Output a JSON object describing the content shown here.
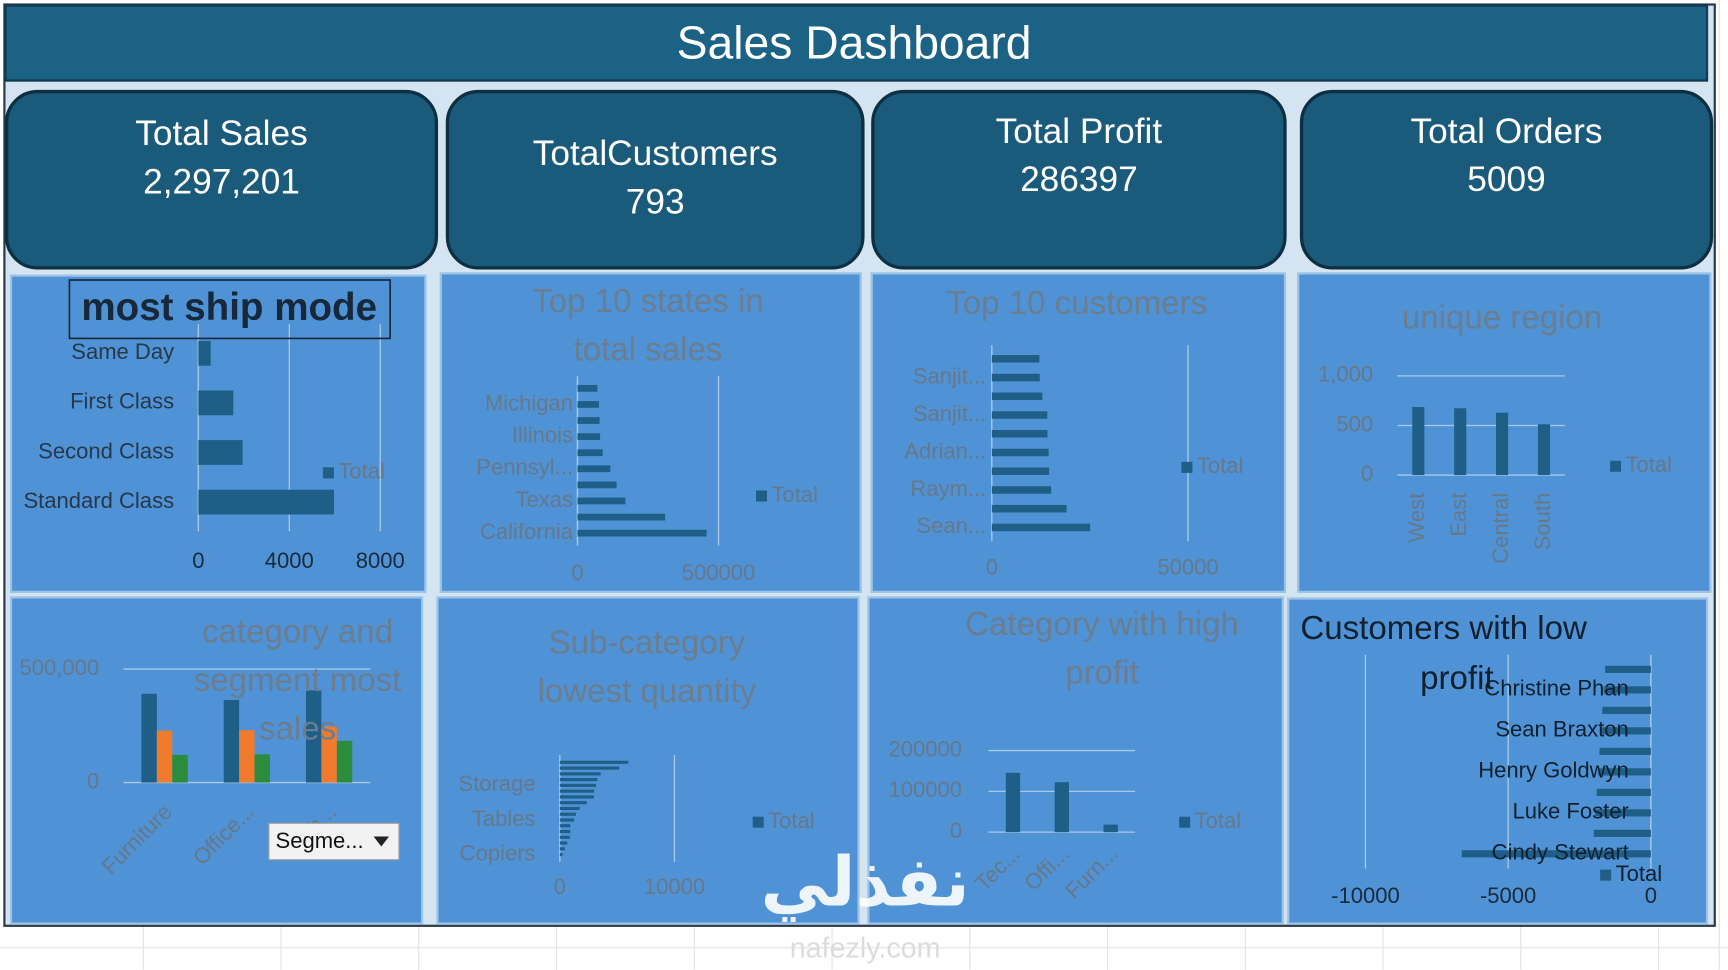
{
  "header": {
    "title": "Sales Dashboard"
  },
  "kpis": [
    {
      "label": "Total Sales",
      "value": "2,297,201"
    },
    {
      "label": "TotalCustomers",
      "value": "793"
    },
    {
      "label": "Total Profit",
      "value": "286397"
    },
    {
      "label": "Total Orders",
      "value": "5009"
    }
  ],
  "watermark": {
    "logo": "نفذلي",
    "site": "nafezly.com"
  },
  "chart_data": [
    {
      "type": "barh",
      "title": [
        "most ship mode"
      ],
      "categories": [
        "Same Day",
        "First Class",
        "Second Class",
        "Standard Class"
      ],
      "series": [
        {
          "name": "Total",
          "color": "#1f5f87",
          "values": [
            543,
            1538,
            1945,
            5968
          ]
        }
      ],
      "xlim": [
        0,
        8000
      ],
      "xticks": [
        0,
        4000,
        8000
      ],
      "grid": true
    },
    {
      "type": "barh",
      "title": [
        "Top 10 states in",
        "total sales"
      ],
      "categories": [
        null,
        "Michigan",
        null,
        "Illinois",
        null,
        "Pennsyl...",
        null,
        "Texas",
        null,
        "California"
      ],
      "series": [
        {
          "name": "Total",
          "color": "#1f5f87",
          "values": [
            70637,
            76270,
            78258,
            80166,
            89474,
            116512,
            138641,
            170188,
            310876,
            457688
          ]
        }
      ],
      "xlim": [
        0,
        500000
      ],
      "xticks": [
        0,
        500000
      ],
      "grid": true
    },
    {
      "type": "barh",
      "title": [
        "Top 10 customers"
      ],
      "categories": [
        null,
        "Sanjit...",
        null,
        "Sanjit...",
        null,
        "Adrian...",
        null,
        "Raym...",
        null,
        "Sean..."
      ],
      "series": [
        {
          "name": "Total",
          "color": "#1f5f87",
          "values": [
            12129,
            12209,
            12873,
            14142,
            14175,
            14474,
            14596,
            15117,
            19052,
            25043
          ]
        }
      ],
      "xlim": [
        0,
        50000
      ],
      "xticks": [
        0,
        50000
      ],
      "grid": true
    },
    {
      "type": "bar",
      "title": [
        "unique region"
      ],
      "categories": [
        "West",
        "East",
        "Central",
        "South"
      ],
      "series": [
        {
          "name": "Total",
          "color": "#1f5f87",
          "values": [
            686,
            674,
            629,
            512
          ]
        }
      ],
      "ylim": [
        0,
        1000
      ],
      "yticks": [
        0,
        500,
        {
          "value": 1000,
          "label": "1,000"
        }
      ],
      "grid": true
    },
    {
      "type": "bar",
      "title": [
        "category and",
        "segment most",
        "sales"
      ],
      "categories": [
        "Furniture",
        "Office...",
        "Tech..."
      ],
      "series": [
        {
          "color": "#1f5f87",
          "values": [
            391049,
            363952,
            406399
          ]
        },
        {
          "color": "#f07b2c",
          "values": [
            229019,
            230676,
            246450
          ]
        },
        {
          "color": "#2a8c3c",
          "values": [
            121930,
            124418,
            183470
          ]
        }
      ],
      "ylim": [
        0,
        500000
      ],
      "yticks": [
        0,
        {
          "value": 500000,
          "label": "500,000"
        }
      ],
      "grid": true,
      "slicer": "Segme..."
    },
    {
      "type": "barh",
      "title": [
        "Sub-category",
        "lowest quantity"
      ],
      "categories": [
        null,
        null,
        null,
        null,
        "Storage",
        null,
        null,
        null,
        null,
        null,
        "Tables",
        null,
        null,
        null,
        null,
        null,
        "Copiers"
      ],
      "series": [
        {
          "name": "Total",
          "color": "#1f5f87",
          "values": [
            5974,
            5178,
            3563,
            3289,
            3158,
            3000,
            2976,
            2356,
            1729,
            1400,
            1241,
            914,
            906,
            868,
            647,
            440,
            234
          ]
        }
      ],
      "xlim": [
        0,
        10000
      ],
      "xticks": [
        0,
        10000
      ],
      "grid": true
    },
    {
      "type": "bar",
      "title": [
        "Category with high",
        "profit"
      ],
      "categories": [
        "Tec...",
        "Offi...",
        "Furn..."
      ],
      "series": [
        {
          "name": "Total",
          "color": "#1f5f87",
          "values": [
            145455,
            122491,
            18451
          ]
        }
      ],
      "ylim": [
        0,
        200000
      ],
      "yticks": [
        0,
        100000,
        200000
      ],
      "grid": true
    },
    {
      "type": "barh",
      "title": [
        "Customers with low",
        "profit"
      ],
      "categories": [
        null,
        "Christine Phan",
        null,
        "Sean Braxton",
        null,
        "Henry Goldwyn",
        null,
        "Luke Foster",
        null,
        "Cindy Stewart"
      ],
      "series": [
        {
          "name": "Total",
          "color": "#1f5f87",
          "values": [
            -1600,
            -1650,
            -1700,
            -1750,
            -1800,
            -1850,
            -1900,
            -1950,
            -2000,
            -6626
          ]
        }
      ],
      "xlim": [
        -10000,
        0
      ],
      "xticks": [
        -10000,
        -5000,
        0
      ],
      "grid": true
    }
  ]
}
